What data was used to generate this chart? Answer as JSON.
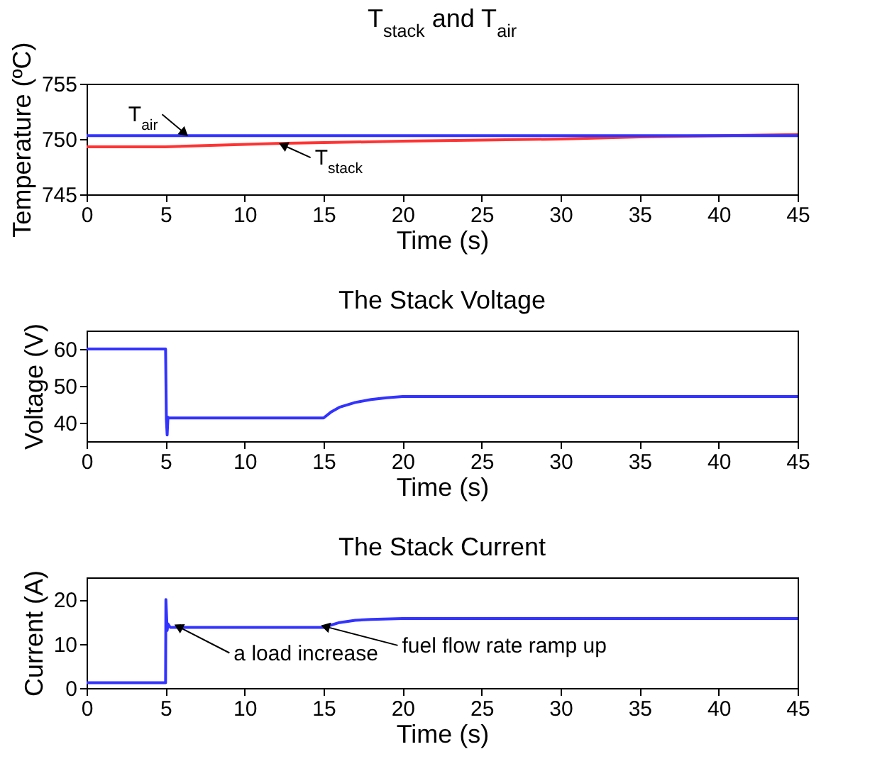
{
  "chart_data": [
    {
      "type": "line",
      "title": "T$_{stack}$ and T$_{air}$",
      "xlabel": "Time (s)",
      "ylabel": "Temperature (ºC)",
      "xlim": [
        0,
        45
      ],
      "xticks": [
        0,
        5,
        10,
        15,
        20,
        25,
        30,
        35,
        40,
        45
      ],
      "ylim": [
        745,
        755
      ],
      "yticks": [
        745,
        750,
        755
      ],
      "series": [
        {
          "name": "T$_{stack}$",
          "color": "#ff3333",
          "x": [
            0,
            5,
            12,
            20,
            25,
            30,
            35,
            45
          ],
          "values": [
            749.3,
            749.3,
            749.6,
            749.8,
            749.9,
            750.0,
            750.2,
            750.4
          ]
        },
        {
          "name": "T$_{air}$",
          "color": "#3333ff",
          "x": [
            0,
            45
          ],
          "values": [
            750.3,
            750.3
          ]
        }
      ]
    },
    {
      "type": "line",
      "title": "The Stack Voltage",
      "xlabel": "Time (s)",
      "ylabel": "Voltage (V)",
      "xlim": [
        0,
        45
      ],
      "xticks": [
        0,
        5,
        10,
        15,
        20,
        25,
        30,
        35,
        40,
        45
      ],
      "ylim": [
        35,
        65
      ],
      "yticks": [
        40,
        50,
        60
      ],
      "series": [
        {
          "color": "#3333ff",
          "x": [
            0,
            5,
            5.05,
            5.1,
            5.15,
            5.2,
            15,
            15.5,
            16,
            17,
            18,
            19,
            20,
            45
          ],
          "values": [
            60,
            60,
            41,
            36.7,
            41.5,
            41.3,
            41.3,
            43,
            44.2,
            45.5,
            46.3,
            46.8,
            47.1,
            47.1
          ]
        }
      ]
    },
    {
      "type": "line",
      "title": "The Stack Current",
      "xlabel": "Time (s)",
      "ylabel": "Current (A)",
      "xlim": [
        0,
        45
      ],
      "xticks": [
        0,
        5,
        10,
        15,
        20,
        25,
        30,
        35,
        40,
        45
      ],
      "ylim": [
        0,
        25
      ],
      "yticks": [
        0,
        10,
        20
      ],
      "series": [
        {
          "color": "#3333ff",
          "x": [
            0,
            5,
            5.02,
            5.1,
            5.15,
            5.3,
            15,
            16,
            17,
            18,
            20,
            45
          ],
          "values": [
            1.2,
            1.2,
            20,
            13,
            14.5,
            13.7,
            13.7,
            14.8,
            15.3,
            15.5,
            15.7,
            15.7
          ]
        }
      ],
      "annotations": [
        {
          "text": "a load increase",
          "x": 5.9,
          "y": 13.7
        },
        {
          "text": "fuel flow rate ramp up",
          "x": 15.2,
          "y": 13.8
        }
      ]
    }
  ]
}
